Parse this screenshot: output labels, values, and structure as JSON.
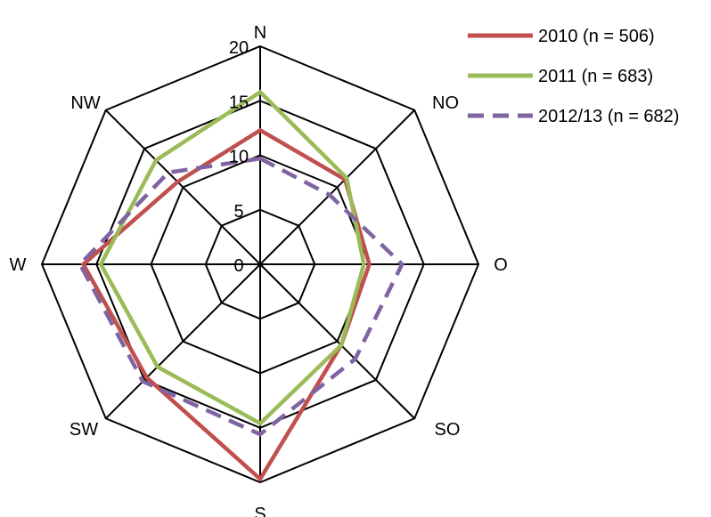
{
  "chart_data": {
    "type": "radar",
    "categories": [
      "N",
      "NO",
      "O",
      "SO",
      "S",
      "SW",
      "W",
      "NW"
    ],
    "rlim": [
      0,
      20
    ],
    "ticks": [
      "0",
      "5",
      "10",
      "15",
      "20"
    ],
    "tick_values": [
      0,
      5,
      10,
      15,
      20
    ],
    "grid": true,
    "legend_position": "top-right",
    "series": [
      {
        "name": "2010 (n = 506)",
        "color": "#c0504d",
        "style": "solid",
        "values": [
          12.3,
          11.0,
          10.0,
          10.5,
          19.7,
          14.7,
          16.2,
          10.7
        ]
      },
      {
        "name": "2011 (n = 683)",
        "color": "#9bbb59",
        "style": "solid",
        "values": [
          15.8,
          11.2,
          9.5,
          10.5,
          14.6,
          13.3,
          14.6,
          13.5
        ]
      },
      {
        "name": "2012/13 (n = 682)",
        "color": "#8064a2",
        "style": "dashed",
        "values": [
          9.7,
          9.0,
          13.0,
          12.3,
          15.6,
          15.2,
          16.5,
          11.9
        ]
      }
    ]
  }
}
